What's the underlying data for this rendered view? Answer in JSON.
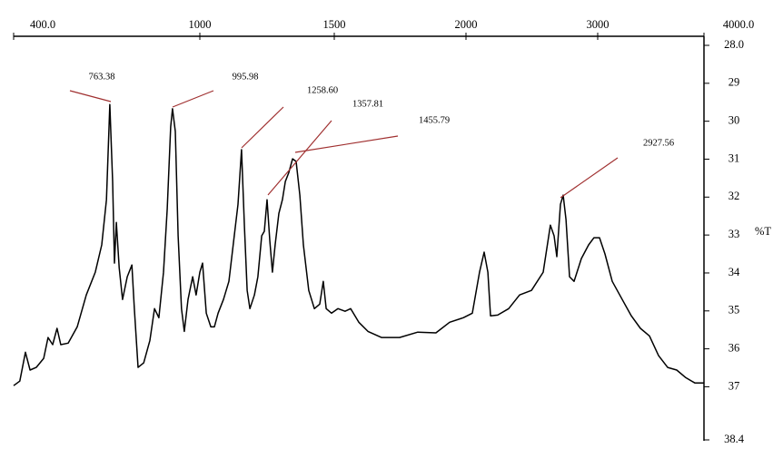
{
  "chart_data": {
    "type": "line",
    "y_label": "%T",
    "color": "#000000",
    "annotation_color": "#a03030",
    "xlim": [
      400,
      4000
    ],
    "xticks": [
      {
        "value": 400,
        "label": "400.0"
      },
      1000,
      1500,
      2000,
      3000,
      {
        "value": 4000,
        "label": "4000.0"
      }
    ],
    "ylim": [
      28,
      38.4
    ],
    "y_inverted": true,
    "yticks": [
      {
        "value": 28,
        "label": "28.0"
      },
      29,
      30,
      31,
      32,
      33,
      34,
      35,
      36,
      37,
      38.4
    ],
    "annotations": [
      "763.38",
      "995.98",
      "1258.60",
      "1357.81",
      "1455.79",
      "2927.56"
    ],
    "x": [
      400,
      420,
      438,
      453,
      473,
      497,
      511,
      526,
      540,
      552,
      576,
      605,
      634,
      663,
      684,
      699,
      710,
      719,
      725,
      731,
      740,
      751,
      766,
      781,
      789,
      801,
      819,
      839,
      854,
      868,
      883,
      895,
      906,
      912,
      921,
      930,
      941,
      950,
      962,
      977,
      988,
      1000,
      1010,
      1024,
      1041,
      1054,
      1068,
      1088,
      1108,
      1128,
      1142,
      1155,
      1166,
      1176,
      1186,
      1203,
      1216,
      1230,
      1240,
      1250,
      1260,
      1270,
      1280,
      1294,
      1307,
      1318,
      1331,
      1345,
      1358,
      1372,
      1385,
      1405,
      1426,
      1446,
      1459,
      1470,
      1490,
      1514,
      1541,
      1562,
      1593,
      1628,
      1679,
      1748,
      1817,
      1886,
      1938,
      1990,
      2048,
      2103,
      2138,
      2166,
      2186,
      2241,
      2324,
      2407,
      2497,
      2586,
      2641,
      2669,
      2690,
      2717,
      2738,
      2759,
      2786,
      2821,
      2876,
      2931,
      2972,
      3017,
      3068,
      3137,
      3231,
      3316,
      3402,
      3487,
      3573,
      3658,
      3744,
      3829,
      3915,
      4000
    ],
    "values": [
      36.97,
      36.85,
      36.09,
      36.56,
      36.49,
      36.25,
      35.7,
      35.89,
      35.46,
      35.89,
      35.85,
      35.42,
      34.58,
      33.98,
      33.26,
      32.07,
      29.56,
      31.59,
      33.74,
      32.67,
      33.86,
      34.7,
      34.1,
      33.79,
      34.94,
      36.49,
      36.37,
      35.78,
      34.94,
      35.18,
      33.98,
      32.31,
      30.15,
      29.67,
      30.27,
      33.02,
      34.94,
      35.54,
      34.7,
      34.1,
      34.58,
      33.98,
      33.74,
      35.06,
      35.42,
      35.42,
      35.06,
      34.7,
      34.22,
      33.02,
      32.19,
      30.75,
      32.78,
      34.46,
      34.94,
      34.58,
      34.1,
      33.02,
      32.9,
      32.07,
      33.14,
      33.98,
      33.26,
      32.43,
      32.07,
      31.59,
      31.35,
      30.99,
      31.06,
      31.95,
      33.26,
      34.46,
      34.94,
      34.82,
      34.22,
      34.94,
      35.06,
      34.94,
      35.01,
      34.94,
      35.3,
      35.54,
      35.7,
      35.7,
      35.56,
      35.58,
      35.3,
      35.18,
      35.06,
      33.98,
      33.45,
      33.98,
      35.13,
      35.11,
      34.94,
      34.58,
      34.46,
      33.98,
      32.74,
      33.02,
      33.57,
      32.19,
      31.95,
      32.59,
      34.1,
      34.22,
      33.62,
      33.26,
      33.07,
      33.07,
      33.5,
      34.22,
      34.7,
      35.13,
      35.46,
      35.66,
      36.18,
      36.49,
      36.56,
      36.76,
      36.9,
      36.9
    ]
  }
}
